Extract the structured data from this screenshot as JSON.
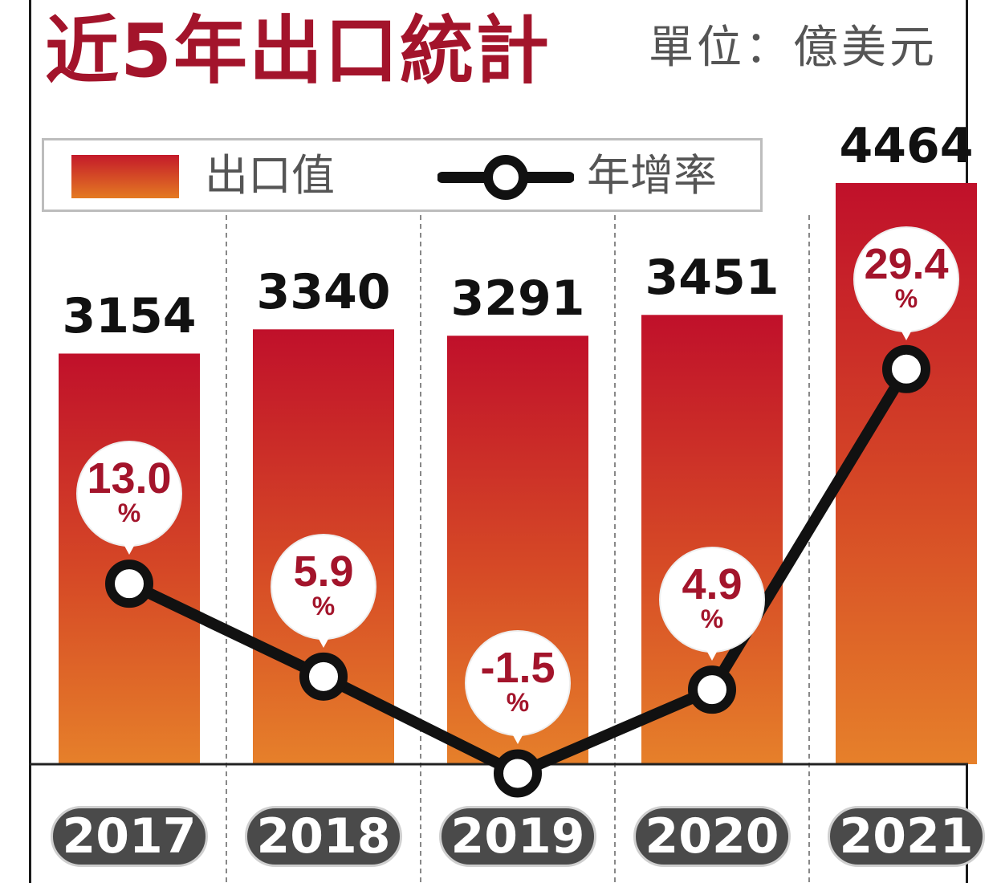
{
  "header": {
    "title": "近5年出口統計",
    "unit": "單位：億美元"
  },
  "legend": {
    "bar_label": "出口值",
    "line_label": "年增率"
  },
  "colors": {
    "title": "#a3142b",
    "bar_top": "#c41a2a",
    "bar_bottom": "#e47a22",
    "line": "#111111",
    "badge": "#4a4a4a"
  },
  "chart_data": {
    "type": "bar",
    "categories": [
      "2017",
      "2018",
      "2019",
      "2020",
      "2021"
    ],
    "series": [
      {
        "name": "出口值",
        "type": "bar",
        "values": [
          3154,
          3340,
          3291,
          3451,
          4464
        ]
      },
      {
        "name": "年增率",
        "type": "line",
        "values": [
          13.0,
          5.9,
          -1.5,
          4.9,
          29.4
        ]
      }
    ],
    "bar_labels": [
      "3154",
      "3340",
      "3291",
      "3451",
      "4464"
    ],
    "line_labels": [
      "13.0",
      "5.9",
      "-1.5",
      "4.9",
      "29.4"
    ],
    "line_label_unit": "%",
    "title": "近5年出口統計",
    "ylabel": "",
    "xlabel": "",
    "grid": false,
    "legend_position": "top-left"
  }
}
